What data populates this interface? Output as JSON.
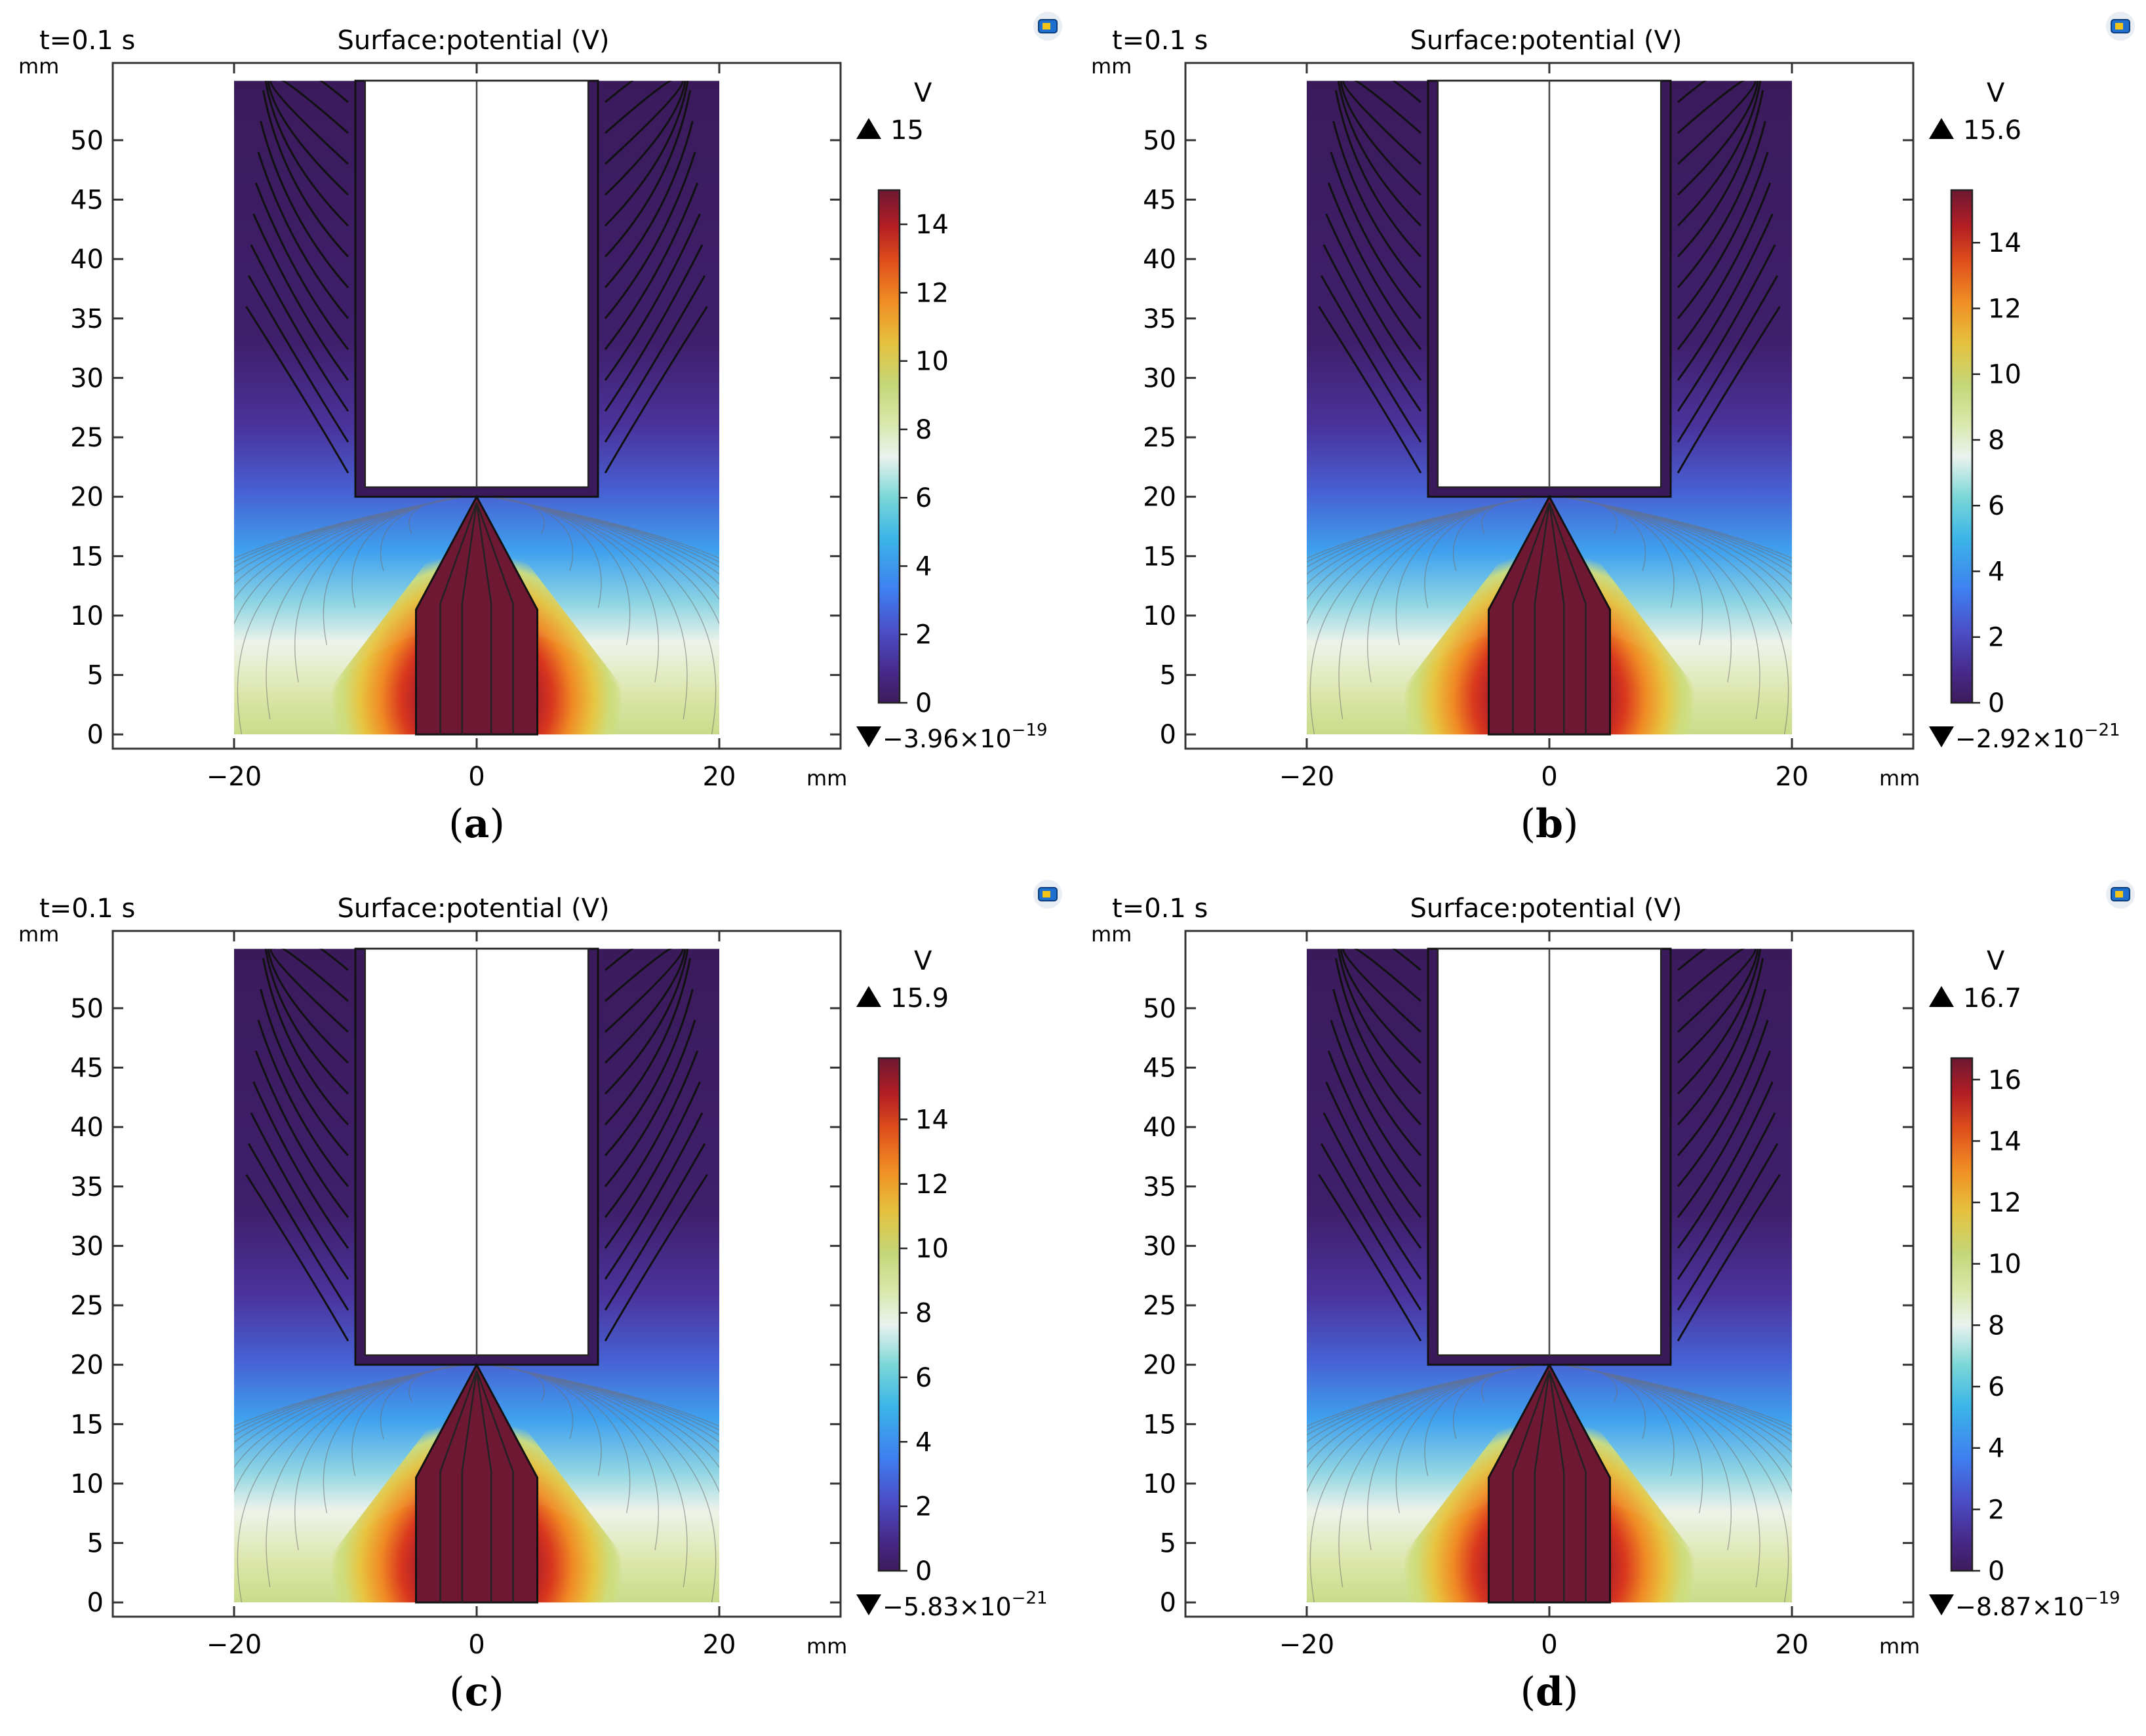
{
  "figure": {
    "panels": [
      {
        "id": "a",
        "caption_open": "(",
        "caption_letter": "a",
        "caption_close": ")",
        "time_label": "t=0.1 s",
        "title": "Surface:potential (V)",
        "y_unit": "mm",
        "x_unit": "mm",
        "colorbar_unit": "V",
        "max_label": "15",
        "min_base": "−3.96×10",
        "min_exp": "−19"
      },
      {
        "id": "b",
        "caption_open": "(",
        "caption_letter": "b",
        "caption_close": ")",
        "time_label": "t=0.1 s",
        "title": "Surface:potential (V)",
        "y_unit": "mm",
        "x_unit": "mm",
        "colorbar_unit": "V",
        "max_label": "15.6",
        "min_base": "−2.92×10",
        "min_exp": "−21"
      },
      {
        "id": "c",
        "caption_open": "(",
        "caption_letter": "c",
        "caption_close": ")",
        "time_label": "t=0.1 s",
        "title": "Surface:potential (V)",
        "y_unit": "mm",
        "x_unit": "mm",
        "colorbar_unit": "V",
        "max_label": "15.9",
        "min_base": "−5.83×10",
        "min_exp": "−21"
      },
      {
        "id": "d",
        "caption_open": "(",
        "caption_letter": "d",
        "caption_close": ")",
        "time_label": "t=0.1 s",
        "title": "Surface:potential (V)",
        "y_unit": "mm",
        "x_unit": "mm",
        "colorbar_unit": "V",
        "max_label": "16.7",
        "min_base": "−8.87×10",
        "min_exp": "−19"
      }
    ]
  },
  "chart_data": [
    {
      "type": "heatmap",
      "panel": "a",
      "title": "Surface:potential (V)",
      "time": 0.1,
      "xlabel": "mm",
      "ylabel": "mm",
      "xlim": [
        -30,
        30
      ],
      "ylim": [
        -1.2,
        56.5
      ],
      "x_ticks": [
        -20,
        0,
        20
      ],
      "x_tick_labels": [
        "−20",
        "0",
        "20"
      ],
      "y_ticks": [
        0,
        5,
        10,
        15,
        20,
        25,
        30,
        35,
        40,
        45,
        50
      ],
      "domain": {
        "x": [
          -20,
          20
        ],
        "y": [
          0,
          55
        ]
      },
      "upper_electrode": {
        "x": [
          -10,
          10
        ],
        "y": [
          20,
          55
        ]
      },
      "lower_electrode": {
        "x": [
          -5,
          5
        ],
        "y": [
          0,
          20
        ]
      },
      "colorbar": {
        "unit": "V",
        "min": -3.96e-19,
        "max": 15,
        "ticks": [
          0,
          2,
          4,
          6,
          8,
          10,
          12,
          14
        ]
      }
    },
    {
      "type": "heatmap",
      "panel": "b",
      "title": "Surface:potential (V)",
      "time": 0.1,
      "xlabel": "mm",
      "ylabel": "mm",
      "xlim": [
        -30,
        30
      ],
      "ylim": [
        -1.2,
        56.5
      ],
      "x_ticks": [
        -20,
        0,
        20
      ],
      "x_tick_labels": [
        "−20",
        "0",
        "20"
      ],
      "y_ticks": [
        0,
        5,
        10,
        15,
        20,
        25,
        30,
        35,
        40,
        45,
        50
      ],
      "domain": {
        "x": [
          -20,
          20
        ],
        "y": [
          0,
          55
        ]
      },
      "upper_electrode": {
        "x": [
          -10,
          10
        ],
        "y": [
          20,
          55
        ]
      },
      "lower_electrode": {
        "x": [
          -5,
          5
        ],
        "y": [
          0,
          20
        ]
      },
      "colorbar": {
        "unit": "V",
        "min": -2.92e-21,
        "max": 15.6,
        "ticks": [
          0,
          2,
          4,
          6,
          8,
          10,
          12,
          14
        ]
      }
    },
    {
      "type": "heatmap",
      "panel": "c",
      "title": "Surface:potential (V)",
      "time": 0.1,
      "xlabel": "mm",
      "ylabel": "mm",
      "xlim": [
        -30,
        30
      ],
      "ylim": [
        -1.2,
        56.5
      ],
      "x_ticks": [
        -20,
        0,
        20
      ],
      "x_tick_labels": [
        "−20",
        "0",
        "20"
      ],
      "y_ticks": [
        0,
        5,
        10,
        15,
        20,
        25,
        30,
        35,
        40,
        45,
        50
      ],
      "domain": {
        "x": [
          -20,
          20
        ],
        "y": [
          0,
          55
        ]
      },
      "upper_electrode": {
        "x": [
          -10,
          10
        ],
        "y": [
          20,
          55
        ]
      },
      "lower_electrode": {
        "x": [
          -5,
          5
        ],
        "y": [
          0,
          20
        ]
      },
      "colorbar": {
        "unit": "V",
        "min": -5.83e-21,
        "max": 15.9,
        "ticks": [
          0,
          2,
          4,
          6,
          8,
          10,
          12,
          14
        ]
      }
    },
    {
      "type": "heatmap",
      "panel": "d",
      "title": "Surface:potential (V)",
      "time": 0.1,
      "xlabel": "mm",
      "ylabel": "mm",
      "xlim": [
        -30,
        30
      ],
      "ylim": [
        -1.2,
        56.5
      ],
      "x_ticks": [
        -20,
        0,
        20
      ],
      "x_tick_labels": [
        "−20",
        "0",
        "20"
      ],
      "y_ticks": [
        0,
        5,
        10,
        15,
        20,
        25,
        30,
        35,
        40,
        45,
        50
      ],
      "domain": {
        "x": [
          -20,
          20
        ],
        "y": [
          0,
          55
        ]
      },
      "upper_electrode": {
        "x": [
          -10,
          10
        ],
        "y": [
          20,
          55
        ]
      },
      "lower_electrode": {
        "x": [
          -5,
          5
        ],
        "y": [
          0,
          20
        ]
      },
      "colorbar": {
        "unit": "V",
        "min": -8.87e-19,
        "max": 16.7,
        "ticks": [
          0,
          2,
          4,
          6,
          8,
          10,
          12,
          14,
          16
        ]
      }
    }
  ]
}
